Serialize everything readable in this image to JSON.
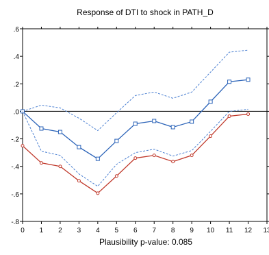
{
  "chart_data": {
    "type": "line",
    "title": "Response of DTI to shock in PATH_D",
    "footnote": "Plausibility p-value: 0.085",
    "xlabel": "",
    "ylabel": "",
    "xlim": [
      0,
      13
    ],
    "ylim": [
      -0.8,
      0.6
    ],
    "x_ticks": [
      0,
      1,
      2,
      3,
      4,
      5,
      6,
      7,
      8,
      9,
      10,
      11,
      12,
      13
    ],
    "y_ticks": [
      {
        "value": -0.8,
        "label": "-.8"
      },
      {
        "value": -0.6,
        "label": "-.6"
      },
      {
        "value": -0.4,
        "label": "-.4"
      },
      {
        "value": -0.2,
        "label": "-.2"
      },
      {
        "value": 0.0,
        "label": ".0"
      },
      {
        "value": 0.2,
        "label": ".2"
      },
      {
        "value": 0.4,
        "label": ".4"
      },
      {
        "value": 0.6,
        "label": ".6"
      }
    ],
    "grid": false,
    "zero_line": true,
    "legend": "none",
    "x": [
      0,
      1,
      2,
      3,
      4,
      5,
      6,
      7,
      8,
      9,
      10,
      11,
      12
    ],
    "series": [
      {
        "key": "upper_band",
        "color": "#4a7fd1",
        "style": "dashed",
        "marker": "none",
        "values": [
          0.0,
          0.045,
          0.025,
          -0.05,
          -0.14,
          -0.01,
          0.115,
          0.14,
          0.095,
          0.14,
          0.285,
          0.43,
          0.445
        ]
      },
      {
        "key": "response",
        "color": "#2b63b8",
        "style": "solid",
        "marker": "square",
        "values": [
          0.0,
          -0.125,
          -0.15,
          -0.26,
          -0.345,
          -0.215,
          -0.09,
          -0.07,
          -0.115,
          -0.075,
          0.07,
          0.215,
          0.23
        ]
      },
      {
        "key": "lower_band",
        "color": "#4a7fd1",
        "style": "dashed",
        "marker": "none",
        "values": [
          0.0,
          -0.29,
          -0.32,
          -0.455,
          -0.545,
          -0.385,
          -0.3,
          -0.275,
          -0.325,
          -0.285,
          -0.145,
          0.0,
          0.015
        ]
      },
      {
        "key": "path_response",
        "color": "#c0392b",
        "style": "solid",
        "marker": "circle",
        "values": [
          -0.25,
          -0.375,
          -0.4,
          -0.505,
          -0.595,
          -0.47,
          -0.34,
          -0.32,
          -0.365,
          -0.32,
          -0.18,
          -0.035,
          -0.02
        ]
      }
    ]
  }
}
